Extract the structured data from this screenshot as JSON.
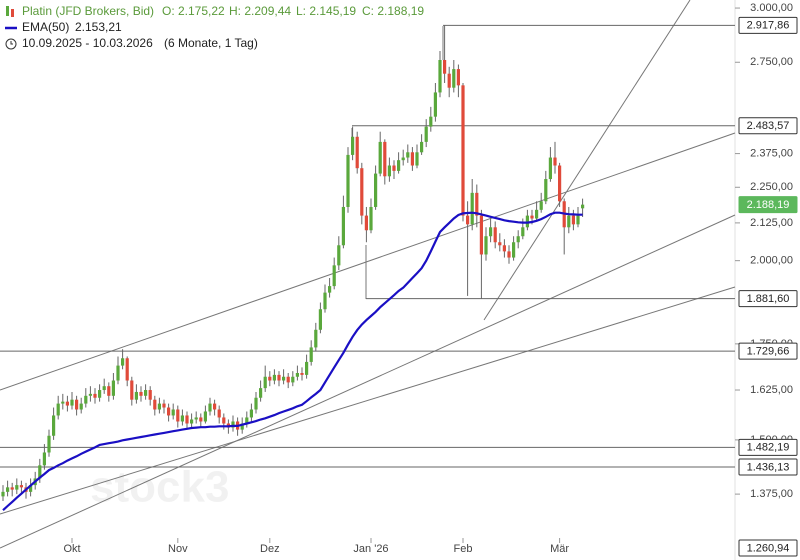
{
  "header": {
    "title": "Platin (JFD Brokers, Bid)",
    "ohlc_labels": [
      "O: 2.175,22",
      "H: 2.209,44",
      "L: 2.145,19",
      "C: 2.188,19"
    ],
    "ema_name": "EMA(50)",
    "ema_label": "2.153,21",
    "range": "10.09.2025 - 10.03.2026",
    "period": "(6 Monate, 1 Tag)"
  },
  "watermark": "stock3",
  "chart_data": {
    "type": "candlestick",
    "log_scale": true,
    "up_color": "#5aa83c",
    "down_color": "#e04a3a",
    "ylim": [
      1237,
      3039
    ],
    "yticks": [
      {
        "value": 3000,
        "label": "3.000,00"
      },
      {
        "value": 2750,
        "label": "2.750,00"
      },
      {
        "value": 2375,
        "label": "2.375,00"
      },
      {
        "value": 2250,
        "label": "2.250,00"
      },
      {
        "value": 2125,
        "label": "2.125,00"
      },
      {
        "value": 2000,
        "label": "2.000,00"
      },
      {
        "value": 1750,
        "label": "1.750,00"
      },
      {
        "value": 1625,
        "label": "1.625,00"
      },
      {
        "value": 1500,
        "label": "1.500,00"
      },
      {
        "value": 1375,
        "label": "1.375,00"
      }
    ],
    "xticks": [
      {
        "value": 15,
        "label": "Okt"
      },
      {
        "value": 38,
        "label": "Nov"
      },
      {
        "value": 58,
        "label": "Dez"
      },
      {
        "value": 80,
        "label": "Jan '26"
      },
      {
        "value": 100,
        "label": "Feb"
      },
      {
        "value": 121,
        "label": "Mär"
      }
    ],
    "open": [
      1370,
      1380,
      1390,
      1385,
      1395,
      1390,
      1380,
      1395,
      1410,
      1440,
      1470,
      1510,
      1560,
      1590,
      1595,
      1585,
      1600,
      1575,
      1590,
      1610,
      1615,
      1605,
      1625,
      1635,
      1610,
      1650,
      1690,
      1710,
      1650,
      1600,
      1620,
      1610,
      1625,
      1600,
      1575,
      1590,
      1580,
      1560,
      1575,
      1545,
      1560,
      1540,
      1550,
      1555,
      1545,
      1570,
      1590,
      1575,
      1555,
      1540,
      1530,
      1545,
      1525,
      1540,
      1555,
      1575,
      1605,
      1630,
      1660,
      1650,
      1665,
      1650,
      1660,
      1645,
      1660,
      1670,
      1665,
      1700,
      1740,
      1790,
      1850,
      1900,
      1920,
      1985,
      2050,
      2180,
      2370,
      2440,
      2320,
      2150,
      2100,
      2180,
      2300,
      2420,
      2290,
      2330,
      2310,
      2350,
      2360,
      2380,
      2330,
      2380,
      2420,
      2480,
      2520,
      2620,
      2760,
      2700,
      2640,
      2720,
      2650,
      2150,
      2120,
      2230,
      2150,
      2020,
      2080,
      2110,
      2060,
      2050,
      2030,
      2010,
      2060,
      2080,
      2110,
      2150,
      2140,
      2170,
      2200,
      2280,
      2360,
      2330,
      2200,
      2110,
      2150,
      2120,
      2175.22
    ],
    "high": [
      1395,
      1405,
      1400,
      1410,
      1405,
      1400,
      1410,
      1425,
      1455,
      1490,
      1525,
      1580,
      1610,
      1615,
      1610,
      1620,
      1610,
      1605,
      1630,
      1635,
      1630,
      1640,
      1655,
      1645,
      1670,
      1715,
      1735,
      1715,
      1660,
      1640,
      1635,
      1640,
      1635,
      1610,
      1605,
      1600,
      1590,
      1590,
      1585,
      1575,
      1570,
      1565,
      1570,
      1565,
      1585,
      1605,
      1600,
      1585,
      1565,
      1550,
      1560,
      1555,
      1555,
      1570,
      1590,
      1620,
      1650,
      1690,
      1675,
      1680,
      1675,
      1680,
      1670,
      1675,
      1690,
      1685,
      1720,
      1760,
      1810,
      1870,
      1925,
      1945,
      2010,
      2080,
      2220,
      2400,
      2480,
      2460,
      2340,
      2180,
      2210,
      2330,
      2460,
      2430,
      2360,
      2350,
      2380,
      2390,
      2410,
      2400,
      2410,
      2450,
      2510,
      2560,
      2660,
      2800,
      2917.86,
      2730,
      2760,
      2740,
      2660,
      2200,
      2280,
      2260,
      2170,
      2110,
      2140,
      2130,
      2090,
      2070,
      2050,
      2080,
      2100,
      2140,
      2170,
      2170,
      2200,
      2230,
      2310,
      2400,
      2420,
      2340,
      2210,
      2180,
      2170,
      2180,
      2209.44
    ],
    "low": [
      1360,
      1370,
      1370,
      1375,
      1375,
      1365,
      1370,
      1385,
      1400,
      1430,
      1460,
      1500,
      1550,
      1575,
      1570,
      1575,
      1560,
      1565,
      1580,
      1595,
      1590,
      1595,
      1615,
      1595,
      1600,
      1640,
      1680,
      1635,
      1585,
      1590,
      1595,
      1600,
      1585,
      1560,
      1565,
      1565,
      1545,
      1550,
      1530,
      1535,
      1525,
      1530,
      1540,
      1530,
      1540,
      1560,
      1560,
      1540,
      1525,
      1515,
      1520,
      1510,
      1515,
      1530,
      1545,
      1565,
      1595,
      1620,
      1635,
      1640,
      1635,
      1640,
      1630,
      1635,
      1650,
      1650,
      1655,
      1690,
      1730,
      1780,
      1840,
      1885,
      1910,
      1970,
      2040,
      2160,
      2350,
      2300,
      2120,
      2060,
      2090,
      2170,
      2290,
      2260,
      2270,
      2280,
      2300,
      2330,
      2340,
      2310,
      2320,
      2370,
      2400,
      2460,
      2500,
      2600,
      2660,
      2600,
      2620,
      2600,
      2130,
      1890,
      2100,
      2110,
      1881.6,
      2000,
      2060,
      2040,
      2030,
      2010,
      1990,
      2000,
      2040,
      2070,
      2100,
      2120,
      2130,
      2160,
      2190,
      2270,
      2300,
      2180,
      2020,
      2090,
      2100,
      2110,
      2145.19
    ],
    "close": [
      1380,
      1390,
      1385,
      1395,
      1390,
      1380,
      1395,
      1410,
      1440,
      1470,
      1510,
      1560,
      1590,
      1595,
      1585,
      1600,
      1575,
      1590,
      1610,
      1615,
      1605,
      1625,
      1635,
      1610,
      1650,
      1690,
      1710,
      1650,
      1600,
      1620,
      1610,
      1625,
      1600,
      1575,
      1590,
      1580,
      1560,
      1575,
      1545,
      1560,
      1540,
      1550,
      1555,
      1545,
      1570,
      1590,
      1575,
      1555,
      1540,
      1530,
      1545,
      1525,
      1540,
      1555,
      1575,
      1605,
      1630,
      1660,
      1650,
      1665,
      1650,
      1660,
      1645,
      1660,
      1670,
      1665,
      1700,
      1740,
      1790,
      1850,
      1900,
      1920,
      1985,
      2050,
      2180,
      2370,
      2440,
      2320,
      2150,
      2100,
      2180,
      2300,
      2420,
      2290,
      2330,
      2310,
      2350,
      2360,
      2380,
      2330,
      2380,
      2420,
      2480,
      2520,
      2620,
      2760,
      2700,
      2640,
      2720,
      2650,
      2150,
      2120,
      2230,
      2150,
      2020,
      2080,
      2110,
      2060,
      2050,
      2030,
      2010,
      2060,
      2080,
      2110,
      2150,
      2140,
      2170,
      2200,
      2280,
      2360,
      2330,
      2200,
      2110,
      2150,
      2120,
      2150,
      2188.19
    ],
    "ema": {
      "color": "#1a0fc4",
      "values": [
        1340,
        1349,
        1358,
        1367,
        1376,
        1385,
        1394,
        1403,
        1412,
        1420,
        1429,
        1434,
        1440,
        1445,
        1451,
        1456,
        1461,
        1467,
        1472,
        1477,
        1482,
        1488,
        1490,
        1492,
        1494,
        1496,
        1499,
        1501,
        1503,
        1505,
        1507,
        1509,
        1511,
        1513,
        1515,
        1517,
        1519,
        1521,
        1523,
        1525,
        1527,
        1529,
        1530,
        1531,
        1531,
        1532,
        1532,
        1533,
        1533,
        1533,
        1534,
        1534,
        1537,
        1540,
        1543,
        1546,
        1550,
        1553,
        1557,
        1561,
        1566,
        1570,
        1574,
        1578,
        1583,
        1587,
        1596,
        1606,
        1615,
        1625,
        1645,
        1665,
        1685,
        1705,
        1725,
        1748,
        1770,
        1789,
        1805,
        1818,
        1830,
        1842,
        1856,
        1868,
        1880,
        1892,
        1905,
        1915,
        1930,
        1945,
        1960,
        1976,
        2000,
        2030,
        2062,
        2094,
        2110,
        2125,
        2140,
        2152,
        2158,
        2159,
        2160,
        2158,
        2154,
        2150,
        2146,
        2142,
        2138,
        2134,
        2131,
        2129,
        2127,
        2126,
        2126,
        2128,
        2132,
        2138,
        2146,
        2155,
        2160,
        2160,
        2157,
        2155,
        2154,
        2153,
        2153.21
      ]
    },
    "levels": [
      {
        "value": 2917.86,
        "label": "2.917,86"
      },
      {
        "value": 2483.57,
        "label": "2.483,57"
      },
      {
        "value": 2188.19,
        "label": "2.188,19",
        "color": "#5cb85c"
      },
      {
        "value": 1881.6,
        "label": "1.881,60"
      },
      {
        "value": 1729.66,
        "label": "1.729,66"
      },
      {
        "value": 1482.19,
        "label": "1.482,19"
      },
      {
        "value": 1436.13,
        "label": "1.436,13"
      },
      {
        "value": 1260.94,
        "label": "1.260,94"
      }
    ]
  }
}
